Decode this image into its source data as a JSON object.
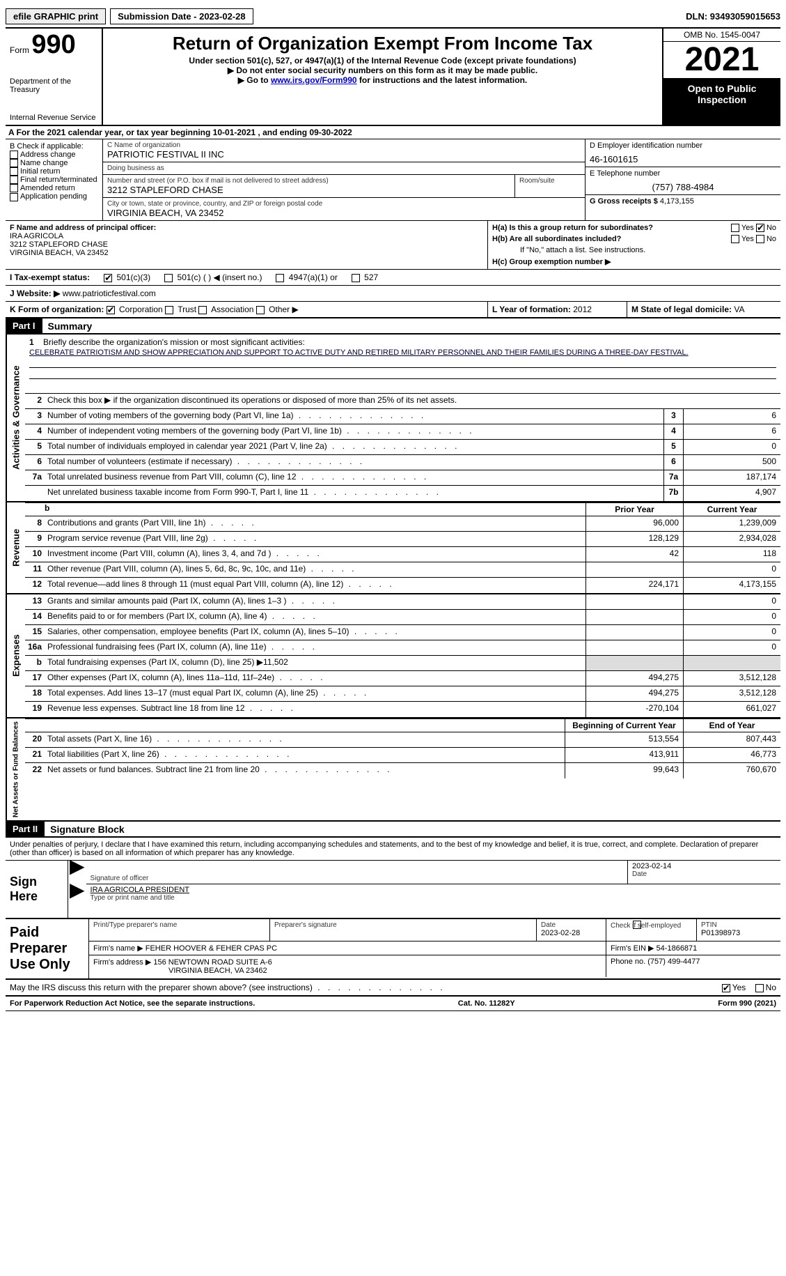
{
  "topbar": {
    "efile_label": "efile GRAPHIC print",
    "submission_label": "Submission Date - 2023-02-28",
    "dln": "DLN: 93493059015653"
  },
  "header": {
    "form_prefix": "Form",
    "form_number": "990",
    "dept1": "Department of the Treasury",
    "dept2": "Internal Revenue Service",
    "title": "Return of Organization Exempt From Income Tax",
    "subtitle": "Under section 501(c), 527, or 4947(a)(1) of the Internal Revenue Code (except private foundations)",
    "note1": "▶ Do not enter social security numbers on this form as it may be made public.",
    "note2_a": "▶ Go to ",
    "note2_link": "www.irs.gov/Form990",
    "note2_b": " for instructions and the latest information.",
    "omb": "OMB No. 1545-0047",
    "year": "2021",
    "otp": "Open to Public Inspection"
  },
  "rowA": {
    "prefix": "A For the 2021 calendar year, or tax year beginning ",
    "begin": "10-01-2021",
    "mid": "  , and ending ",
    "end": "09-30-2022"
  },
  "colB": {
    "title": "B Check if applicable:",
    "opts": [
      "Address change",
      "Name change",
      "Initial return",
      "Final return/terminated",
      "Amended return",
      "Application pending"
    ]
  },
  "colC": {
    "name_label": "C Name of organization",
    "name_val": "PATRIOTIC FESTIVAL II INC",
    "dba_label": "Doing business as",
    "dba_val": "",
    "street_label": "Number and street (or P.O. box if mail is not delivered to street address)",
    "room_label": "Room/suite",
    "street_val": "3212 STAPLEFORD CHASE",
    "city_label": "City or town, state or province, country, and ZIP or foreign postal code",
    "city_val": "VIRGINIA BEACH, VA  23452"
  },
  "colD": {
    "ein_label": "D Employer identification number",
    "ein_val": "46-1601615",
    "tel_label": "E Telephone number",
    "tel_val": "(757) 788-4984",
    "gross_label": "G Gross receipts $",
    "gross_val": "4,173,155"
  },
  "rowF": {
    "label": "F  Name and address of principal officer:",
    "name": "IRA AGRICOLA",
    "addr1": "3212 STAPLEFORD CHASE",
    "addr2": "VIRGINIA BEACH, VA  23452"
  },
  "rowH": {
    "ha_label": "H(a)  Is this a group return for subordinates?",
    "ha_yes": "Yes",
    "ha_no": "No",
    "hb_label": "H(b)  Are all subordinates included?",
    "hb_note": "If \"No,\" attach a list. See instructions.",
    "hc_label": "H(c)  Group exemption number ▶"
  },
  "rowI": {
    "label": "I  Tax-exempt status:",
    "o1": "501(c)(3)",
    "o2": "501(c) (  ) ◀ (insert no.)",
    "o3": "4947(a)(1) or",
    "o4": "527"
  },
  "rowJ": {
    "label": "J  Website: ▶",
    "val": " www.patrioticfestival.com"
  },
  "rowK": {
    "label": "K Form of organization:",
    "o1": "Corporation",
    "o2": "Trust",
    "o3": "Association",
    "o4": "Other ▶",
    "yof_label": "L Year of formation: ",
    "yof_val": "2012",
    "dom_label": "M State of legal domicile: ",
    "dom_val": "VA"
  },
  "part1": {
    "hdr": "Part I",
    "title": "Summary",
    "q1_label": "Briefly describe the organization's mission or most significant activities:",
    "q1_val": "CELEBRATE PATRIOTISM AND SHOW APPRECIATION AND SUPPORT TO ACTIVE DUTY AND RETIRED MILITARY PERSONNEL AND THEIR FAMILIES DURING A THREE-DAY FESTIVAL.",
    "q2": "Check this box ▶       if the organization discontinued its operations or disposed of more than 25% of its net assets.",
    "lines_top": [
      {
        "n": "3",
        "d": "Number of voting members of the governing body (Part VI, line 1a)",
        "b": "3",
        "v": "6"
      },
      {
        "n": "4",
        "d": "Number of independent voting members of the governing body (Part VI, line 1b)",
        "b": "4",
        "v": "6"
      },
      {
        "n": "5",
        "d": "Total number of individuals employed in calendar year 2021 (Part V, line 2a)",
        "b": "5",
        "v": "0"
      },
      {
        "n": "6",
        "d": "Total number of volunteers (estimate if necessary)",
        "b": "6",
        "v": "500"
      },
      {
        "n": "7a",
        "d": "Total unrelated business revenue from Part VIII, column (C), line 12",
        "b": "7a",
        "v": "187,174"
      },
      {
        "n": "",
        "d": "Net unrelated business taxable income from Form 990-T, Part I, line 11",
        "b": "7b",
        "v": "4,907"
      }
    ],
    "col_prior": "Prior Year",
    "col_current": "Current Year",
    "revenue": [
      {
        "n": "8",
        "d": "Contributions and grants (Part VIII, line 1h)",
        "p": "96,000",
        "c": "1,239,009"
      },
      {
        "n": "9",
        "d": "Program service revenue (Part VIII, line 2g)",
        "p": "128,129",
        "c": "2,934,028"
      },
      {
        "n": "10",
        "d": "Investment income (Part VIII, column (A), lines 3, 4, and 7d )",
        "p": "42",
        "c": "118"
      },
      {
        "n": "11",
        "d": "Other revenue (Part VIII, column (A), lines 5, 6d, 8c, 9c, 10c, and 11e)",
        "p": "",
        "c": "0"
      },
      {
        "n": "12",
        "d": "Total revenue—add lines 8 through 11 (must equal Part VIII, column (A), line 12)",
        "p": "224,171",
        "c": "4,173,155"
      }
    ],
    "expenses": [
      {
        "n": "13",
        "d": "Grants and similar amounts paid (Part IX, column (A), lines 1–3 )",
        "p": "",
        "c": "0"
      },
      {
        "n": "14",
        "d": "Benefits paid to or for members (Part IX, column (A), line 4)",
        "p": "",
        "c": "0"
      },
      {
        "n": "15",
        "d": "Salaries, other compensation, employee benefits (Part IX, column (A), lines 5–10)",
        "p": "",
        "c": "0"
      },
      {
        "n": "16a",
        "d": "Professional fundraising fees (Part IX, column (A), line 11e)",
        "p": "",
        "c": "0"
      },
      {
        "n": "b",
        "d": "Total fundraising expenses (Part IX, column (D), line 25) ▶11,502",
        "p": "SHADE",
        "c": "SHADE"
      },
      {
        "n": "17",
        "d": "Other expenses (Part IX, column (A), lines 11a–11d, 11f–24e)",
        "p": "494,275",
        "c": "3,512,128"
      },
      {
        "n": "18",
        "d": "Total expenses. Add lines 13–17 (must equal Part IX, column (A), line 25)",
        "p": "494,275",
        "c": "3,512,128"
      },
      {
        "n": "19",
        "d": "Revenue less expenses. Subtract line 18 from line 12",
        "p": "-270,104",
        "c": "661,027"
      }
    ],
    "col_begin": "Beginning of Current Year",
    "col_end": "End of Year",
    "netassets": [
      {
        "n": "20",
        "d": "Total assets (Part X, line 16)",
        "p": "513,554",
        "c": "807,443"
      },
      {
        "n": "21",
        "d": "Total liabilities (Part X, line 26)",
        "p": "413,911",
        "c": "46,773"
      },
      {
        "n": "22",
        "d": "Net assets or fund balances. Subtract line 21 from line 20",
        "p": "99,643",
        "c": "760,670"
      }
    ]
  },
  "part2": {
    "hdr": "Part II",
    "title": "Signature Block",
    "intro": "Under penalties of perjury, I declare that I have examined this return, including accompanying schedules and statements, and to the best of my knowledge and belief, it is true, correct, and complete. Declaration of preparer (other than officer) is based on all information of which preparer has any knowledge.",
    "sign_here": "Sign Here",
    "sig_officer_label": "Signature of officer",
    "sig_date": "2023-02-14",
    "date_label": "Date",
    "officer_name": "IRA AGRICOLA  PRESIDENT",
    "officer_name_label": "Type or print name and title",
    "paid_title": "Paid Preparer Use Only",
    "prep_name_label": "Print/Type preparer's name",
    "prep_sig_label": "Preparer's signature",
    "prep_date_label": "Date",
    "prep_date_val": "2023-02-28",
    "self_emp": "Check        if self-employed",
    "ptin_label": "PTIN",
    "ptin_val": "P01398973",
    "firm_name_label": "Firm's name     ▶",
    "firm_name_val": "FEHER HOOVER & FEHER CPAS PC",
    "firm_ein_label": "Firm's EIN ▶",
    "firm_ein_val": "54-1866871",
    "firm_addr_label": "Firm's address ▶",
    "firm_addr_val1": "156 NEWTOWN ROAD SUITE A-6",
    "firm_addr_val2": "VIRGINIA BEACH, VA  23462",
    "firm_phone_label": "Phone no.",
    "firm_phone_val": "(757) 499-4477",
    "irs_q": "May the IRS discuss this return with the preparer shown above? (see instructions)",
    "yes": "Yes",
    "no": "No"
  },
  "footer": {
    "left": "For Paperwork Reduction Act Notice, see the separate instructions.",
    "mid": "Cat. No. 11282Y",
    "right": "Form 990 (2021)"
  },
  "vtabs": {
    "ag": "Activities & Governance",
    "rev": "Revenue",
    "exp": "Expenses",
    "na": "Net Assets or Fund Balances"
  }
}
